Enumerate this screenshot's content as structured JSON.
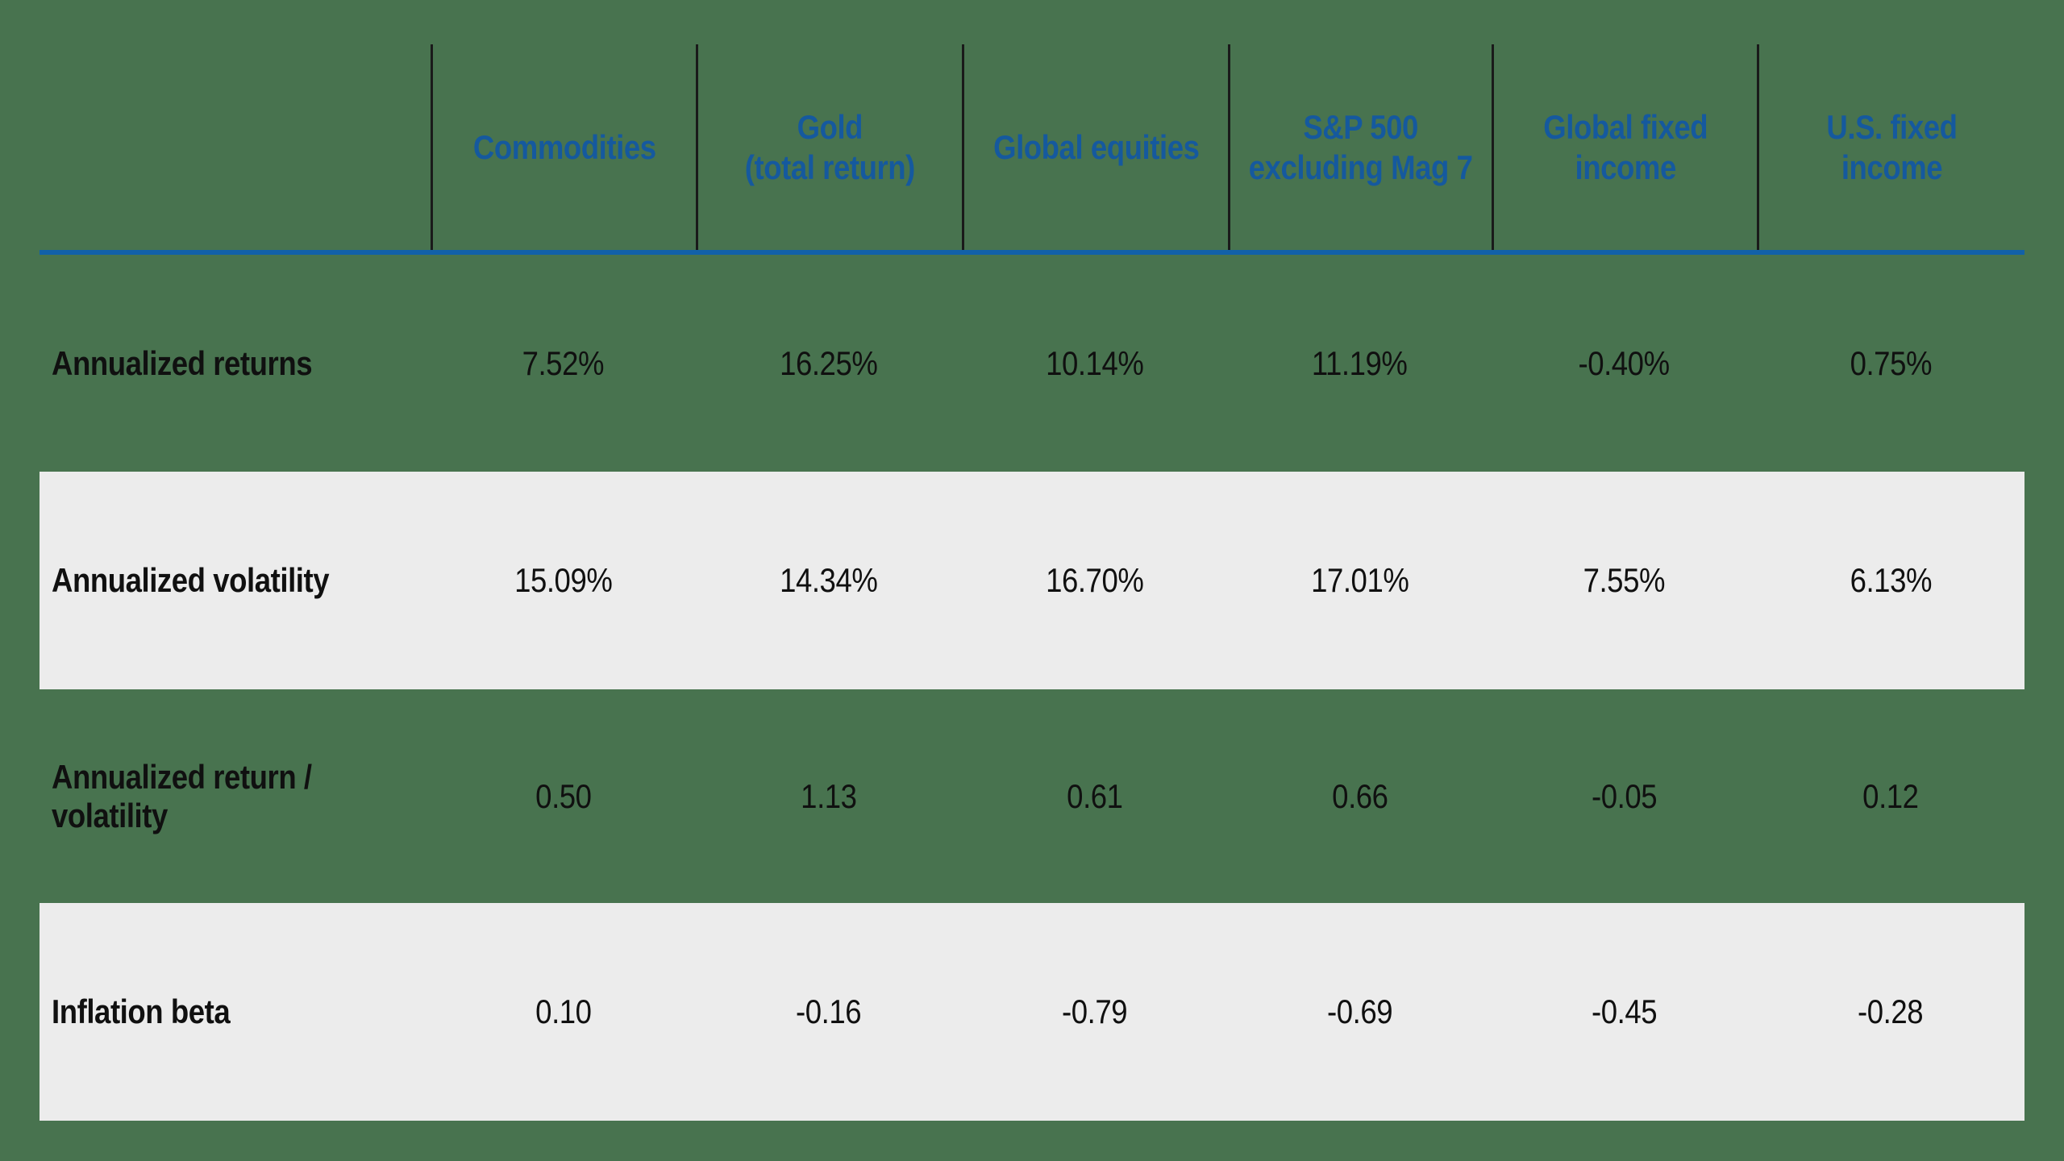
{
  "table": {
    "corner_label": "",
    "columns": [
      "Commodities",
      "Gold\n(total return)",
      "Global equities",
      "S&P 500\nexcluding Mag 7",
      "Global fixed\nincome",
      "U.S. fixed income"
    ],
    "rows": [
      {
        "label": "Annualized returns",
        "values": [
          "7.52%",
          "16.25%",
          "10.14%",
          "11.19%",
          "-0.40%",
          "0.75%"
        ],
        "shaded": false
      },
      {
        "label": "Annualized volatility",
        "values": [
          "15.09%",
          "14.34%",
          "16.70%",
          "17.01%",
          "7.55%",
          "6.13%"
        ],
        "shaded": true
      },
      {
        "label": "Annualized return / volatility",
        "values": [
          "0.50",
          "1.13",
          "0.61",
          "0.66",
          "-0.05",
          "0.12"
        ],
        "shaded": false
      },
      {
        "label": "Inflation beta",
        "values": [
          "0.10",
          "-0.16",
          "-0.79",
          "-0.69",
          "-0.45",
          "-0.28"
        ],
        "shaded": true
      }
    ]
  },
  "chart_data": {
    "type": "table",
    "columns": [
      "Commodities",
      "Gold (total return)",
      "Global equities",
      "S&P 500 excluding Mag 7",
      "Global fixed income",
      "U.S. fixed income"
    ],
    "metrics": [
      {
        "name": "Annualized returns",
        "unit": "%",
        "values": [
          7.52,
          16.25,
          10.14,
          11.19,
          -0.4,
          0.75
        ]
      },
      {
        "name": "Annualized volatility",
        "unit": "%",
        "values": [
          15.09,
          14.34,
          16.7,
          17.01,
          7.55,
          6.13
        ]
      },
      {
        "name": "Annualized return / volatility",
        "unit": "ratio",
        "values": [
          0.5,
          1.13,
          0.61,
          0.66,
          -0.05,
          0.12
        ]
      },
      {
        "name": "Inflation beta",
        "unit": "beta",
        "values": [
          0.1,
          -0.16,
          -0.79,
          -0.69,
          -0.45,
          -0.28
        ]
      }
    ],
    "legend_position": "none",
    "grid": "header-separators-and-row-bands"
  },
  "colors": {
    "background_green": "#48734F",
    "row_band_gray": "#ECECEC",
    "header_text_blue": "#15599E",
    "header_rule_blue": "#1261A8",
    "separator_black": "#1A1A1A",
    "body_text_black": "#101010"
  }
}
